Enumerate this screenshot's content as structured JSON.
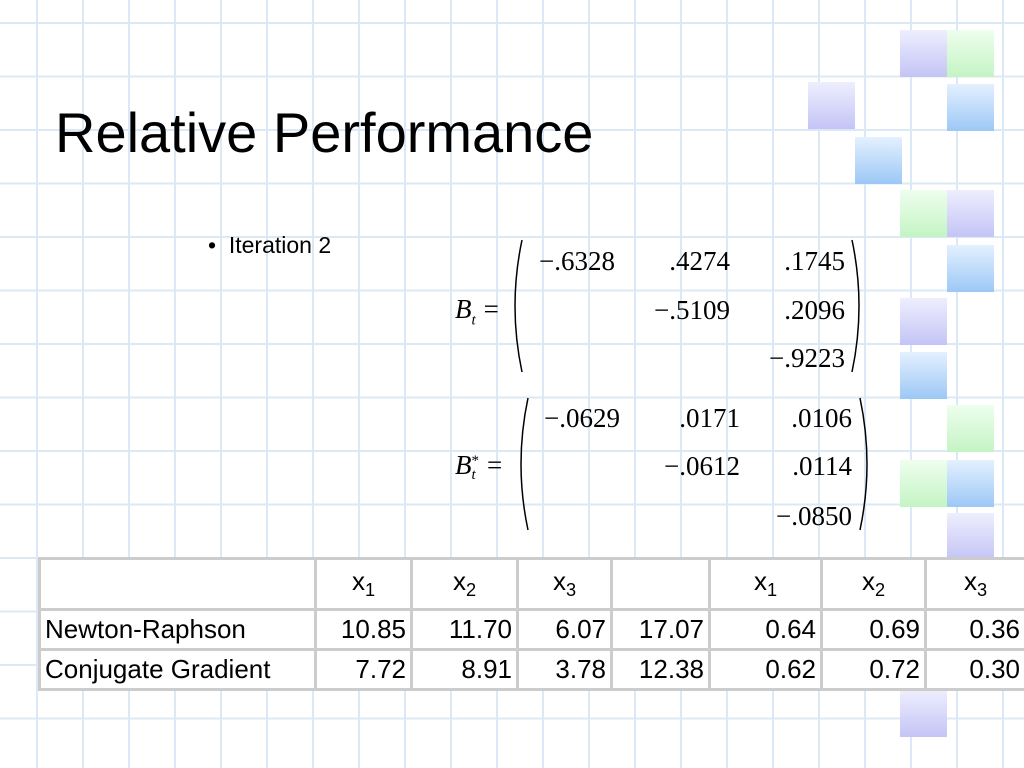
{
  "title": "Relative Performance",
  "bullet": "Iteration 2",
  "matrices": [
    {
      "symbol": "B",
      "sub": "t",
      "equals": "=",
      "rows": [
        [
          "−.6328",
          ".4274",
          ".1745"
        ],
        [
          null,
          "−.5109",
          ".2096"
        ],
        [
          null,
          null,
          "−.9223"
        ]
      ]
    },
    {
      "symbol": "B",
      "sub": "t",
      "sup": "*",
      "equals": "=",
      "rows": [
        [
          "−.0629",
          ".0171",
          ".0106"
        ],
        [
          null,
          "−.0612",
          ".0114"
        ],
        [
          null,
          null,
          "−.0850"
        ]
      ]
    }
  ],
  "table": {
    "header": [
      null,
      {
        "var": "x",
        "sub": "1"
      },
      {
        "var": "x",
        "sub": "2"
      },
      {
        "var": "x",
        "sub": "3"
      },
      null,
      {
        "var": "x",
        "sub": "1"
      },
      {
        "var": "x",
        "sub": "2"
      },
      {
        "var": "x",
        "sub": "3"
      }
    ],
    "rows": [
      [
        "Newton-Raphson",
        "10.85",
        "11.70",
        "6.07",
        "17.07",
        "0.64",
        "0.69",
        "0.36"
      ],
      [
        "Conjugate Gradient",
        "7.72",
        "8.91",
        "3.78",
        "12.38",
        "0.62",
        "0.72",
        "0.30"
      ]
    ]
  }
}
